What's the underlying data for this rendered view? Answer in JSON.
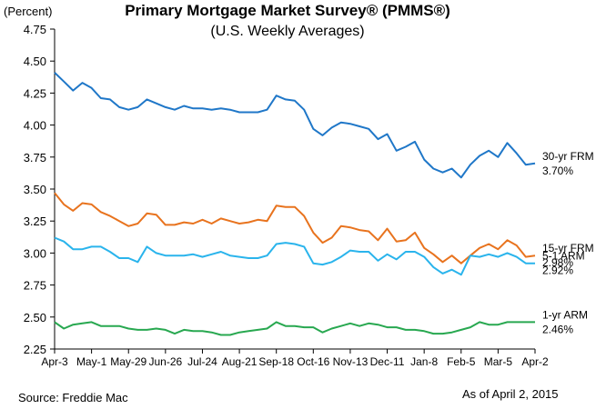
{
  "chart_data": {
    "type": "line",
    "title": "Primary Mortgage Market Survey® (PMMS®)",
    "subtitle": "(U.S. Weekly Averages)",
    "ylabel": "(Percent)",
    "ylim": [
      2.25,
      4.75
    ],
    "yticks": [
      "4.75",
      "4.50",
      "4.25",
      "4.00",
      "3.75",
      "3.50",
      "3.25",
      "3.00",
      "2.75",
      "2.50",
      "2.25"
    ],
    "xticks": [
      "Apr-3",
      "May-1",
      "May-29",
      "Jun-26",
      "Jul-24",
      "Aug-21",
      "Sep-18",
      "Oct-16",
      "Nov-13",
      "Dec-11",
      "Jan-8",
      "Feb-5",
      "Mar-5",
      "Apr-2"
    ],
    "grid": false,
    "colors": {
      "frm30": "#1f77c8",
      "frm15": "#e8731e",
      "arm51": "#2ab4ec",
      "arm1": "#28a850"
    },
    "series": [
      {
        "name": "30-yr FRM",
        "value_label": "3.70%",
        "color": "#1f77c8",
        "values": [
          4.41,
          4.34,
          4.27,
          4.33,
          4.29,
          4.21,
          4.2,
          4.14,
          4.12,
          4.14,
          4.2,
          4.17,
          4.14,
          4.12,
          4.15,
          4.13,
          4.13,
          4.12,
          4.13,
          4.12,
          4.1,
          4.1,
          4.1,
          4.12,
          4.23,
          4.2,
          4.19,
          4.12,
          3.97,
          3.92,
          3.98,
          4.02,
          4.01,
          3.99,
          3.97,
          3.89,
          3.93,
          3.8,
          3.83,
          3.87,
          3.73,
          3.66,
          3.63,
          3.66,
          3.59,
          3.69,
          3.76,
          3.8,
          3.75,
          3.86,
          3.78,
          3.69,
          3.7
        ]
      },
      {
        "name": "15-yr FRM",
        "value_label": "2.98%",
        "color": "#e8731e",
        "values": [
          3.47,
          3.38,
          3.33,
          3.39,
          3.38,
          3.32,
          3.29,
          3.25,
          3.21,
          3.23,
          3.31,
          3.3,
          3.22,
          3.22,
          3.24,
          3.23,
          3.26,
          3.23,
          3.27,
          3.25,
          3.23,
          3.24,
          3.26,
          3.25,
          3.37,
          3.36,
          3.36,
          3.29,
          3.16,
          3.08,
          3.12,
          3.21,
          3.2,
          3.18,
          3.17,
          3.1,
          3.19,
          3.09,
          3.1,
          3.16,
          3.04,
          2.99,
          2.93,
          2.98,
          2.92,
          2.98,
          3.04,
          3.07,
          3.03,
          3.1,
          3.06,
          2.97,
          2.98
        ]
      },
      {
        "name": "5-1 ARM",
        "value_label": "2.92%",
        "color": "#2ab4ec",
        "values": [
          3.12,
          3.09,
          3.03,
          3.03,
          3.05,
          3.05,
          3.01,
          2.96,
          2.96,
          2.93,
          3.05,
          3.0,
          2.98,
          2.98,
          2.98,
          2.99,
          2.97,
          2.99,
          3.01,
          2.98,
          2.97,
          2.96,
          2.96,
          2.98,
          3.07,
          3.08,
          3.07,
          3.05,
          2.92,
          2.91,
          2.93,
          2.97,
          3.02,
          3.01,
          3.01,
          2.94,
          2.99,
          2.95,
          3.01,
          3.01,
          2.97,
          2.89,
          2.84,
          2.87,
          2.83,
          2.98,
          2.97,
          2.99,
          2.97,
          3.0,
          2.97,
          2.92,
          2.92
        ]
      },
      {
        "name": "1-yr ARM",
        "value_label": "2.46%",
        "color": "#28a850",
        "values": [
          2.46,
          2.41,
          2.44,
          2.45,
          2.46,
          2.43,
          2.43,
          2.43,
          2.41,
          2.4,
          2.4,
          2.41,
          2.4,
          2.37,
          2.4,
          2.39,
          2.39,
          2.38,
          2.36,
          2.36,
          2.38,
          2.39,
          2.4,
          2.41,
          2.46,
          2.43,
          2.43,
          2.42,
          2.42,
          2.38,
          2.41,
          2.43,
          2.45,
          2.43,
          2.45,
          2.44,
          2.42,
          2.42,
          2.4,
          2.4,
          2.39,
          2.37,
          2.37,
          2.38,
          2.4,
          2.42,
          2.46,
          2.44,
          2.44,
          2.46,
          2.46,
          2.46,
          2.46
        ]
      }
    ],
    "source": "Source: Freddie Mac",
    "as_of": "As of April 2, 2015"
  }
}
